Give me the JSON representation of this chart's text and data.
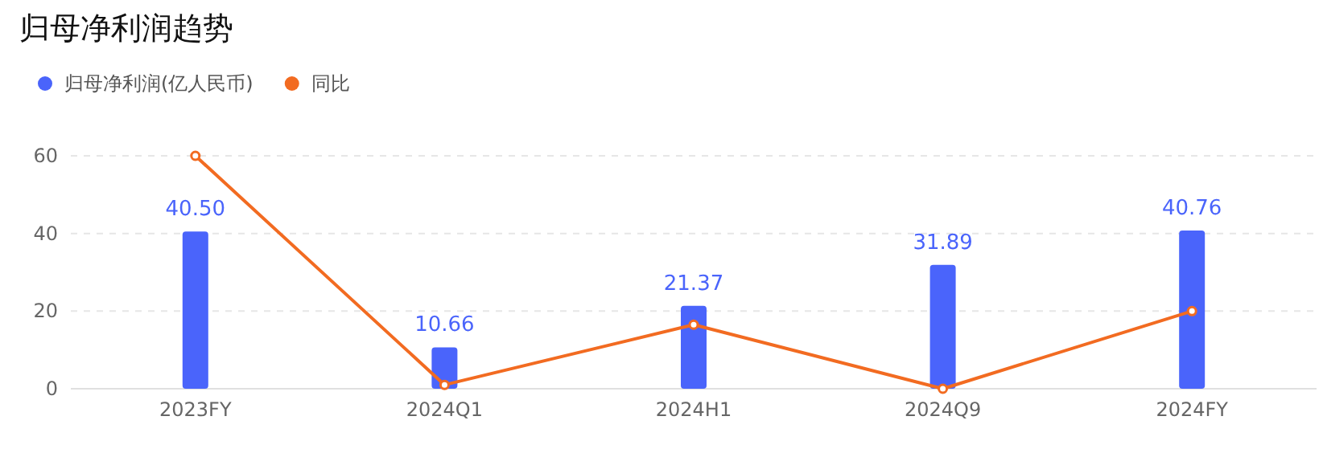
{
  "chart_data": {
    "type": "bar",
    "title": "归母净利润趋势",
    "categories": [
      "2023FY",
      "2024Q1",
      "2024H1",
      "2024Q9",
      "2024FY"
    ],
    "series": [
      {
        "name": "归母净利润(亿人民币)",
        "color": "#4a64fb",
        "values": [
          40.5,
          10.66,
          21.37,
          31.89,
          40.76
        ],
        "value_labels": [
          "40.50",
          "10.66",
          "21.37",
          "31.89",
          "40.76"
        ]
      },
      {
        "type": "line",
        "name": "同比",
        "color": "#f26b21",
        "values": [
          60,
          1,
          16.5,
          0,
          20
        ],
        "marker": "circle"
      }
    ],
    "ylim": [
      0,
      60
    ],
    "yticks": [
      0,
      20,
      40,
      60
    ],
    "grid": "y",
    "legend": "top left"
  }
}
